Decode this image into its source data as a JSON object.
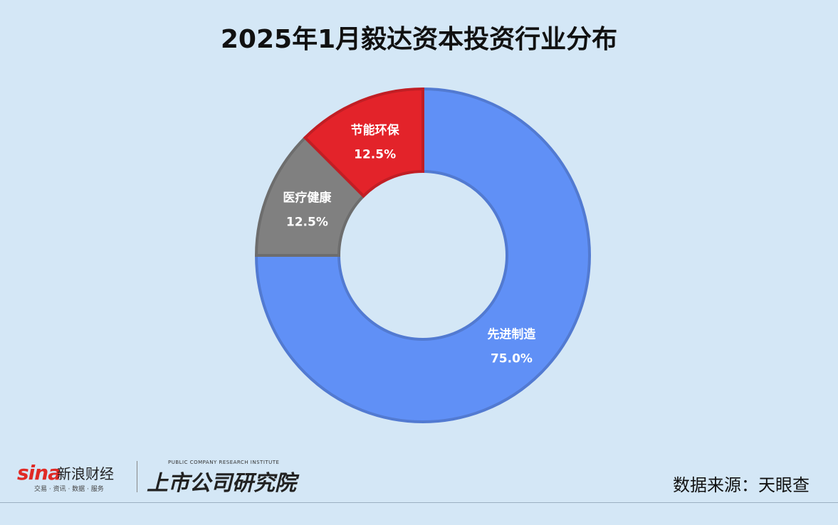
{
  "chart_data": {
    "type": "pie",
    "title": "2025年1月毅达资本投资行业分布",
    "donut": true,
    "slices": [
      {
        "label": "先进制造",
        "value": 75.0,
        "value_label": "75.0%",
        "color": "#6090f6"
      },
      {
        "label": "医疗健康",
        "value": 12.5,
        "value_label": "12.5%",
        "color": "#808080"
      },
      {
        "label": "节能环保",
        "value": 12.5,
        "value_label": "12.5%",
        "color": "#e3232a"
      }
    ]
  },
  "footer": {
    "sina_logo": "sina",
    "sina_name": "新浪财经",
    "sina_tagline": "交易 · 资讯 · 数据 · 服务",
    "institute_en": "PUBLIC COMPANY RESEARCH INSTITUTE",
    "institute_cn": "上市公司研究院",
    "source": "数据来源：天眼查"
  }
}
